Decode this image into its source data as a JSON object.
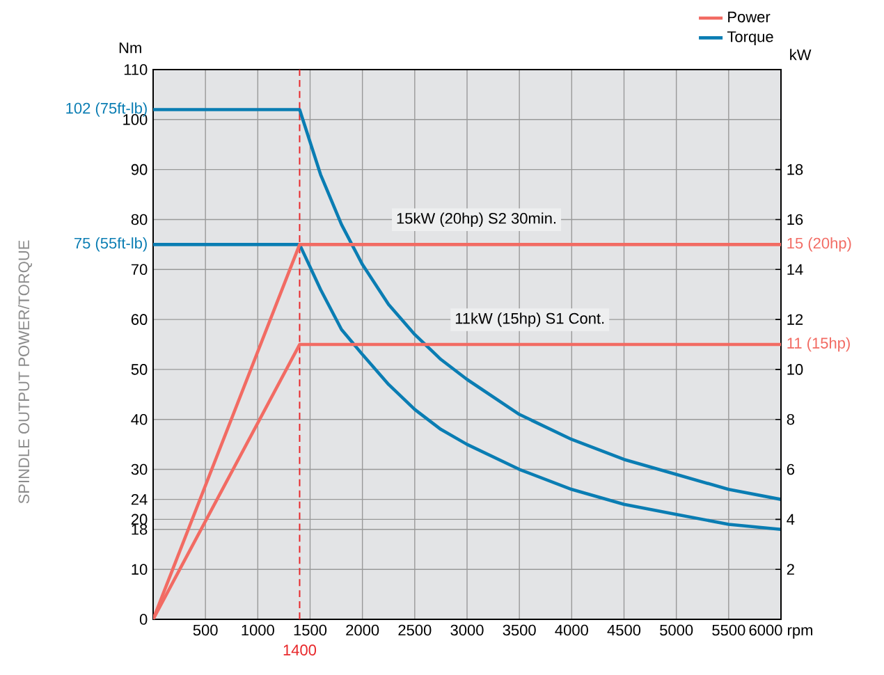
{
  "chart_data": {
    "type": "line",
    "ylabel": "SPINDLE OUTPUT POWER/TORQUE",
    "y2label": "kW",
    "xlim": [
      0,
      6000
    ],
    "xticks": [
      500,
      1000,
      1500,
      2000,
      2500,
      3000,
      3500,
      4000,
      4500,
      5000,
      5500,
      {
        "value": 6000,
        "label": "6000 rpm"
      }
    ],
    "ylim": [
      0,
      110
    ],
    "yticks": [
      0,
      10,
      18,
      20,
      24,
      30,
      40,
      50,
      60,
      70,
      {
        "value": 75,
        "label": "75 (55ft-lb)"
      },
      80,
      90,
      100,
      {
        "value": 102,
        "label": "102 (75ft-lb)"
      },
      110
    ],
    "y2lim": [
      0,
      22
    ],
    "y2ticks": [
      2,
      4,
      6,
      8,
      10,
      {
        "value": 11,
        "label": "11 (15hp)"
      },
      12,
      14,
      {
        "value": 15,
        "label": "15 (20hp)"
      },
      16,
      18
    ],
    "grid": true,
    "legend": "top right",
    "marker": "none",
    "line_style": "solid",
    "ref_lines": [
      {
        "axis": "x",
        "value": 1400,
        "label": "1400",
        "color": "#e8282b",
        "line_style": "dashed"
      }
    ],
    "annotations": [
      "15kW (20hp) S2 30min.",
      "11kW (15hp) S1 Cont.",
      "Nm"
    ],
    "series": [
      {
        "name": "Power",
        "color": "#f26b63",
        "axis": "y2",
        "x": [
          0,
          1400,
          6000
        ],
        "values": [
          0,
          15,
          15
        ]
      },
      {
        "color": "#f26b63",
        "axis": "y2",
        "x": [
          0,
          1400,
          6000
        ],
        "values": [
          0,
          11,
          11
        ]
      },
      {
        "name": "Torque",
        "color": "#0a7db3",
        "x": [
          0,
          1400,
          1600,
          1800,
          2000,
          2250,
          2500,
          2750,
          3000,
          3500,
          4000,
          4500,
          5000,
          5500,
          6000
        ],
        "values": [
          102,
          102,
          89,
          79,
          71,
          63,
          57,
          52,
          48,
          41,
          36,
          32,
          29,
          26,
          24
        ]
      },
      {
        "color": "#0a7db3",
        "x": [
          0,
          1400,
          1600,
          1800,
          2000,
          2250,
          2500,
          2750,
          3000,
          3500,
          4000,
          4500,
          5000,
          5500,
          6000
        ],
        "values": [
          75,
          75,
          66,
          58,
          53,
          47,
          42,
          38,
          35,
          30,
          26,
          23,
          21,
          19,
          18
        ]
      }
    ]
  }
}
